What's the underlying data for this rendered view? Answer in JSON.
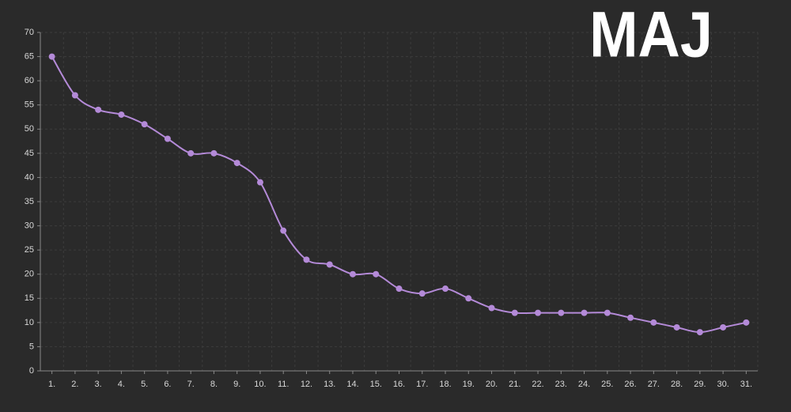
{
  "chart_data": {
    "type": "line",
    "title": "MAJ",
    "categories": [
      "1.",
      "2.",
      "3.",
      "4.",
      "5.",
      "6.",
      "7.",
      "8.",
      "9.",
      "10.",
      "11.",
      "12.",
      "13.",
      "14.",
      "15.",
      "16.",
      "17.",
      "18.",
      "19.",
      "20.",
      "21.",
      "22.",
      "23.",
      "24.",
      "25.",
      "26.",
      "27.",
      "28.",
      "29.",
      "30.",
      "31."
    ],
    "values": [
      65,
      57,
      54,
      53,
      51,
      48,
      45,
      45,
      43,
      39,
      29,
      23,
      22,
      20,
      20,
      17,
      16,
      17,
      15,
      13,
      12,
      12,
      12,
      12,
      12,
      11,
      10,
      9,
      8,
      9,
      10
    ],
    "color": "#b48ad8",
    "ylim": [
      0,
      70
    ],
    "yticks": [
      0,
      5,
      10,
      15,
      20,
      25,
      30,
      35,
      40,
      45,
      50,
      55,
      60,
      65,
      70
    ],
    "grid": true
  }
}
